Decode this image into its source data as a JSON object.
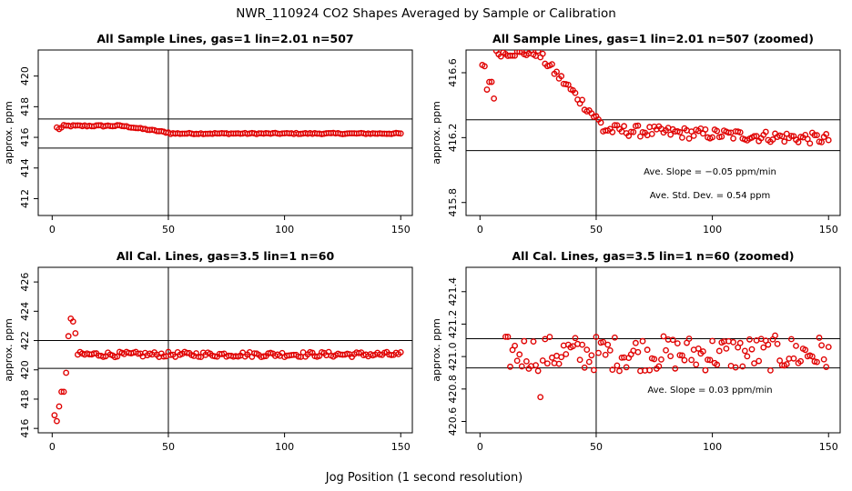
{
  "figure": {
    "title": "NWR_110924  CO2 Shapes Averaged by Sample or Calibration",
    "xlabel": "Jog Position (1 second resolution)"
  },
  "colors": {
    "points": "#e00000",
    "lines": "#000000",
    "background": "#ffffff"
  },
  "chart_data": [
    {
      "type": "scatter",
      "title": "All Sample Lines, gas=1 lin=2.01 n=507",
      "ylabel": "approx. ppm",
      "xlim": [
        -6,
        155
      ],
      "ylim": [
        410.9,
        421.7
      ],
      "xticks": [
        "0",
        "50",
        "100",
        "150"
      ],
      "yticks": [
        "412",
        "414",
        "416",
        "418",
        "420"
      ],
      "hlines": [
        417.2,
        415.3
      ],
      "vline": 50,
      "annotations": [],
      "generator": "sample",
      "x_start": 2,
      "x_end": 150
    },
    {
      "type": "scatter",
      "title": "All Sample Lines, gas=1 lin=2.01 n=507 (zoomed)",
      "ylabel": "approx. ppm",
      "xlim": [
        -6,
        155
      ],
      "ylim": [
        415.72,
        416.74
      ],
      "xticks": [
        "0",
        "50",
        "100",
        "150"
      ],
      "yticks": [
        "415.8",
        "416.2",
        "416.6"
      ],
      "hlines": [
        416.31,
        416.12
      ],
      "vline": 50,
      "annotations": [
        "Ave. Slope =  −0.05  ppm/min",
        "Ave. Std. Dev. =  0.54  ppm"
      ],
      "generator": "sample_zoom",
      "x_start": 1,
      "x_end": 150
    },
    {
      "type": "scatter",
      "title": "All Cal. Lines, gas=3.5 lin=1 n=60",
      "ylabel": "approx. ppm",
      "xlim": [
        -6,
        155
      ],
      "ylim": [
        415.7,
        427
      ],
      "xticks": [
        "0",
        "50",
        "100",
        "150"
      ],
      "yticks": [
        "416",
        "418",
        "420",
        "422",
        "424",
        "426"
      ],
      "hlines": [
        422.0,
        420.1
      ],
      "vline": 50,
      "annotations": [],
      "generator": "cal",
      "x_start": 1,
      "x_end": 150,
      "early_points": [
        [
          1,
          416.9
        ],
        [
          2,
          416.5
        ],
        [
          3,
          417.5
        ],
        [
          4,
          418.5
        ],
        [
          5,
          418.5
        ],
        [
          6,
          419.8
        ],
        [
          7,
          422.3
        ],
        [
          8,
          423.5
        ],
        [
          9,
          423.3
        ],
        [
          10,
          422.5
        ]
      ]
    },
    {
      "type": "scatter",
      "title": "All Cal. Lines, gas=3.5 lin=1 n=60 (zoomed)",
      "ylabel": "approx. ppm",
      "xlim": [
        -6,
        155
      ],
      "ylim": [
        420.53,
        421.55
      ],
      "xticks": [
        "0",
        "50",
        "100",
        "150"
      ],
      "yticks": [
        "420.6",
        "420.8",
        "421.0",
        "421.2",
        "421.4"
      ],
      "hlines": [
        421.11,
        420.93
      ],
      "vline": 50,
      "annotations": [
        "Ave. Slope =  0.03  ppm/min"
      ],
      "generator": "cal_zoom",
      "x_start": 11,
      "x_end": 150
    }
  ]
}
